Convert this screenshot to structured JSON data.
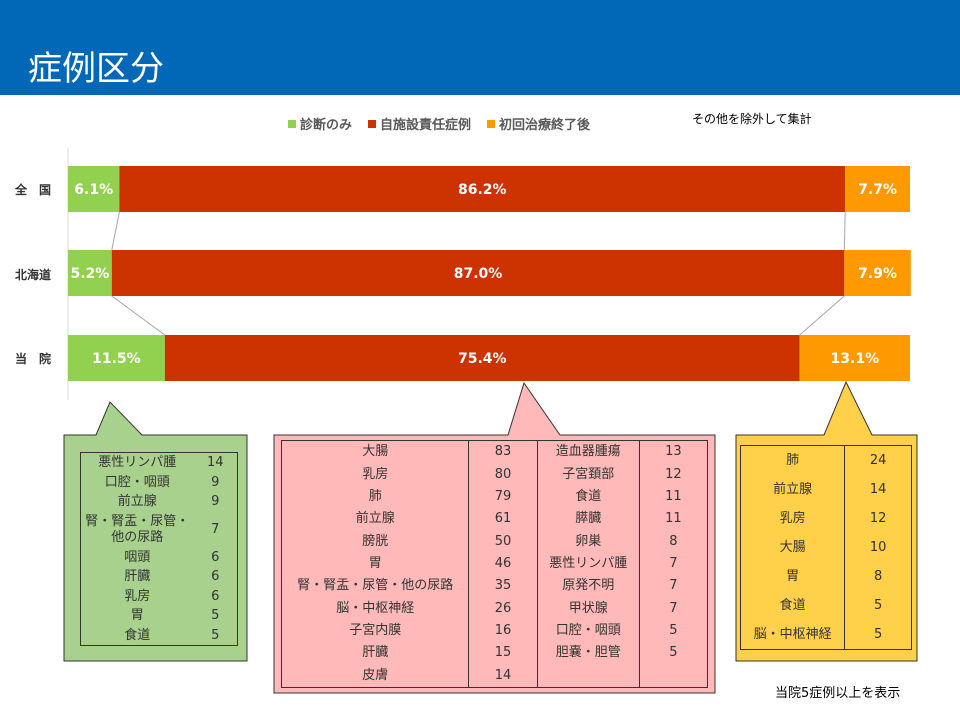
{
  "title": "症例区分",
  "note": "その他を除外して集計",
  "footer": "当院5症例以上を表示",
  "chart_data": {
    "type": "bar",
    "orientation": "horizontal-stacked-100",
    "categories": [
      "全　国",
      "北海道",
      "当　院"
    ],
    "series": [
      {
        "name": "診断のみ",
        "color": "#92d050",
        "values": [
          6.1,
          5.2,
          11.5
        ],
        "labels": [
          "6.1%",
          "5.2%",
          "11.5%"
        ]
      },
      {
        "name": "自施設責任症例",
        "color": "#cc3300",
        "values": [
          86.2,
          87.0,
          75.4
        ],
        "labels": [
          "86.2%",
          "87.0%",
          "75.4%"
        ]
      },
      {
        "name": "初回治療終了後",
        "color": "#ff9900",
        "values": [
          7.7,
          7.9,
          13.1
        ],
        "labels": [
          "7.7%",
          "7.9%",
          "13.1%"
        ]
      }
    ],
    "xlim": [
      0,
      100
    ],
    "legend": "top"
  },
  "green_table": [
    [
      "悪性リンパ腫",
      "14"
    ],
    [
      "口腔・咽頭",
      "9"
    ],
    [
      "前立腺",
      "9"
    ],
    [
      "腎・腎盂・尿管・他の尿路",
      "7"
    ],
    [
      "咽頭",
      "6"
    ],
    [
      "肝臓",
      "6"
    ],
    [
      "乳房",
      "6"
    ],
    [
      "胃",
      "5"
    ],
    [
      "食道",
      "5"
    ]
  ],
  "pink_table": [
    [
      "大腸",
      "83",
      "造血器腫瘍",
      "13"
    ],
    [
      "乳房",
      "80",
      "子宮頚部",
      "12"
    ],
    [
      "肺",
      "79",
      "食道",
      "11"
    ],
    [
      "前立腺",
      "61",
      "膵臓",
      "11"
    ],
    [
      "膀胱",
      "50",
      "卵巣",
      "8"
    ],
    [
      "胃",
      "46",
      "悪性リンパ腫",
      "7"
    ],
    [
      "腎・腎盂・尿管・他の尿路",
      "35",
      "原発不明",
      "7"
    ],
    [
      "脳・中枢神経",
      "26",
      "甲状腺",
      "7"
    ],
    [
      "子宮内膜",
      "16",
      "口腔・咽頭",
      "5"
    ],
    [
      "肝臓",
      "15",
      "胆嚢・胆管",
      "5"
    ],
    [
      "皮膚",
      "14",
      "",
      ""
    ]
  ],
  "orange_table": [
    [
      "肺",
      "24"
    ],
    [
      "前立腺",
      "14"
    ],
    [
      "乳房",
      "12"
    ],
    [
      "大腸",
      "10"
    ],
    [
      "胃",
      "8"
    ],
    [
      "食道",
      "5"
    ],
    [
      "脳・中枢神経",
      "5"
    ]
  ]
}
